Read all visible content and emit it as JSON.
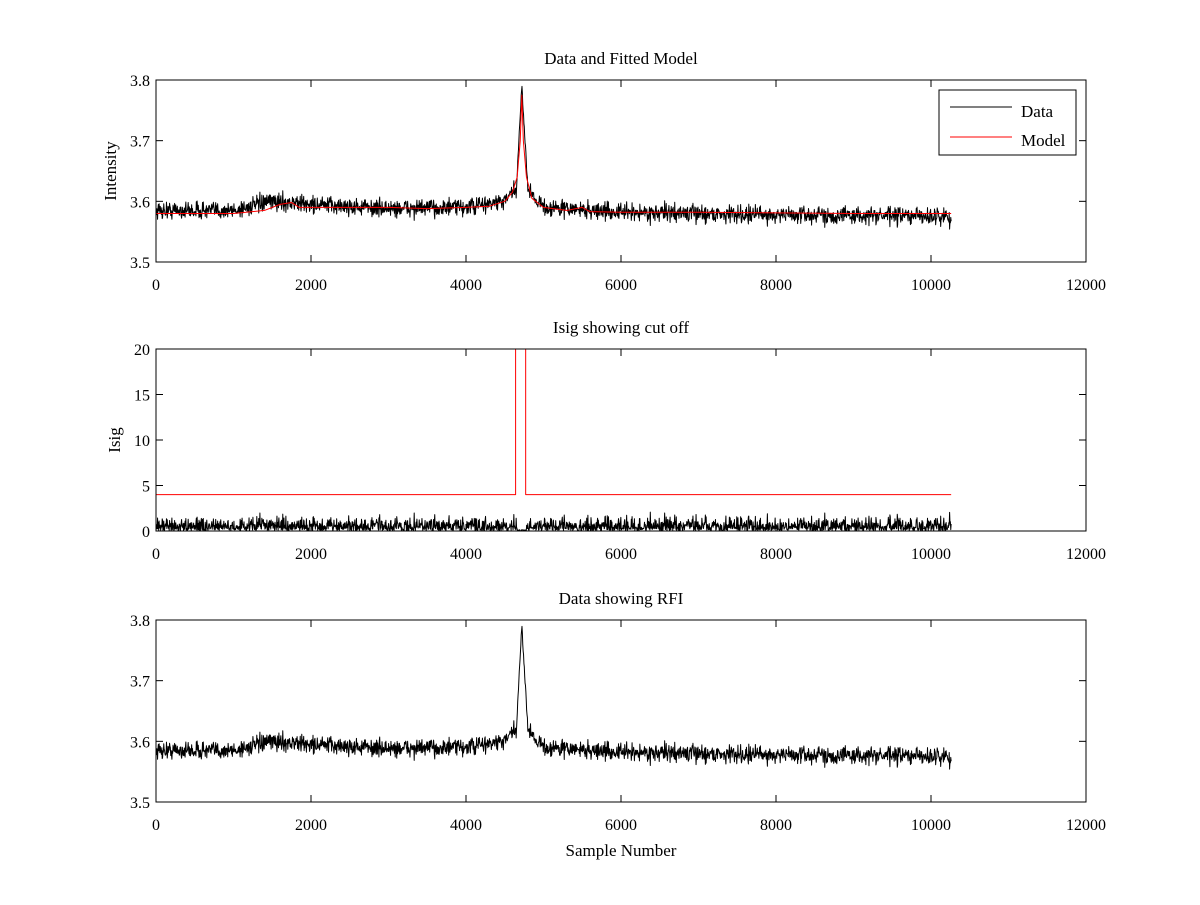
{
  "figure": {
    "background": "#ffffff"
  },
  "chart_data": [
    {
      "type": "line",
      "title": "Data and Fitted Model",
      "xlabel": "",
      "ylabel": "Intensity",
      "xlim": [
        0,
        12000
      ],
      "ylim": [
        3.5,
        3.8
      ],
      "xticks": [
        0,
        2000,
        4000,
        6000,
        8000,
        10000,
        12000
      ],
      "xtick_labels": [
        "0",
        "2000",
        "4000",
        "6000",
        "8000",
        "10000",
        "12000"
      ],
      "yticks": [
        3.5,
        3.6,
        3.7,
        3.8
      ],
      "ytick_labels": [
        "3.5",
        "3.6",
        "3.7",
        "3.8"
      ],
      "legend": {
        "placement": "top-right",
        "entries": [
          {
            "label": "Data",
            "color": "#000000"
          },
          {
            "label": "Model",
            "color": "#ff0000"
          }
        ]
      },
      "series": [
        {
          "name": "Data",
          "color": "#000000",
          "kind": "noisy_signal",
          "x_start": 0,
          "x_end": 10260,
          "n_points": 2052,
          "baseline": [
            [
              0,
              3.585
            ],
            [
              1000,
              3.585
            ],
            [
              1500,
              3.6
            ],
            [
              2000,
              3.595
            ],
            [
              3000,
              3.588
            ],
            [
              4000,
              3.59
            ],
            [
              4500,
              3.6
            ],
            [
              4650,
              3.62
            ],
            [
              4720,
              3.79
            ],
            [
              4800,
              3.62
            ],
            [
              5000,
              3.59
            ],
            [
              6000,
              3.582
            ],
            [
              8000,
              3.578
            ],
            [
              10260,
              3.575
            ]
          ],
          "noise_amplitude": 0.013,
          "min_value": 3.54,
          "max_value": 3.79
        },
        {
          "name": "Model",
          "color": "#ff0000",
          "kind": "line",
          "points": [
            [
              0,
              3.58
            ],
            [
              500,
              3.58
            ],
            [
              1000,
              3.58
            ],
            [
              1400,
              3.585
            ],
            [
              1600,
              3.595
            ],
            [
              1750,
              3.598
            ],
            [
              1850,
              3.59
            ],
            [
              2000,
              3.59
            ],
            [
              3000,
              3.59
            ],
            [
              3500,
              3.588
            ],
            [
              4000,
              3.59
            ],
            [
              4300,
              3.592
            ],
            [
              4500,
              3.6
            ],
            [
              4600,
              3.615
            ],
            [
              4660,
              3.64
            ],
            [
              4700,
              3.7
            ],
            [
              4720,
              3.775
            ],
            [
              4740,
              3.7
            ],
            [
              4780,
              3.64
            ],
            [
              4850,
              3.605
            ],
            [
              5000,
              3.59
            ],
            [
              5300,
              3.585
            ],
            [
              5500,
              3.59
            ],
            [
              5600,
              3.583
            ],
            [
              6000,
              3.582
            ],
            [
              7000,
              3.582
            ],
            [
              8000,
              3.581
            ],
            [
              9000,
              3.58
            ],
            [
              10260,
              3.58
            ]
          ]
        }
      ]
    },
    {
      "type": "line",
      "title": "Isig showing cut off",
      "xlabel": "",
      "ylabel": "Isig",
      "xlim": [
        0,
        12000
      ],
      "ylim": [
        0,
        20
      ],
      "xticks": [
        0,
        2000,
        4000,
        6000,
        8000,
        10000,
        12000
      ],
      "xtick_labels": [
        "0",
        "2000",
        "4000",
        "6000",
        "8000",
        "10000",
        "12000"
      ],
      "yticks": [
        0,
        5,
        10,
        15,
        20
      ],
      "ytick_labels": [
        "0",
        "5",
        "10",
        "15",
        "20"
      ],
      "series": [
        {
          "name": "Isig",
          "color": "#000000",
          "kind": "abs_noise",
          "x_start": 0,
          "x_end": 10260,
          "n_points": 2052,
          "mean_level": 0.8,
          "max_value": 3.8
        },
        {
          "name": "Cut off",
          "color": "#ff0000",
          "kind": "line",
          "points": [
            [
              0,
              4
            ],
            [
              4640,
              4
            ],
            [
              4640,
              20
            ],
            [
              4770,
              20
            ],
            [
              4770,
              4
            ],
            [
              10260,
              4
            ]
          ]
        }
      ]
    },
    {
      "type": "line",
      "title": "Data showing RFI",
      "xlabel": "Sample Number",
      "ylabel": "",
      "xlim": [
        0,
        12000
      ],
      "ylim": [
        3.5,
        3.8
      ],
      "xticks": [
        0,
        2000,
        4000,
        6000,
        8000,
        10000,
        12000
      ],
      "xtick_labels": [
        "0",
        "2000",
        "4000",
        "6000",
        "8000",
        "10000",
        "12000"
      ],
      "yticks": [
        3.5,
        3.6,
        3.7,
        3.8
      ],
      "ytick_labels": [
        "3.5",
        "3.6",
        "3.7",
        "3.8"
      ],
      "series": [
        {
          "name": "Data",
          "color": "#000000",
          "kind": "noisy_signal",
          "x_start": 0,
          "x_end": 10260,
          "n_points": 2052,
          "baseline": [
            [
              0,
              3.585
            ],
            [
              1000,
              3.585
            ],
            [
              1500,
              3.6
            ],
            [
              2000,
              3.595
            ],
            [
              3000,
              3.588
            ],
            [
              4000,
              3.59
            ],
            [
              4500,
              3.6
            ],
            [
              4650,
              3.62
            ],
            [
              4720,
              3.79
            ],
            [
              4800,
              3.62
            ],
            [
              5000,
              3.59
            ],
            [
              6000,
              3.582
            ],
            [
              8000,
              3.578
            ],
            [
              10260,
              3.575
            ]
          ],
          "noise_amplitude": 0.013,
          "min_value": 3.54,
          "max_value": 3.79
        }
      ]
    }
  ]
}
